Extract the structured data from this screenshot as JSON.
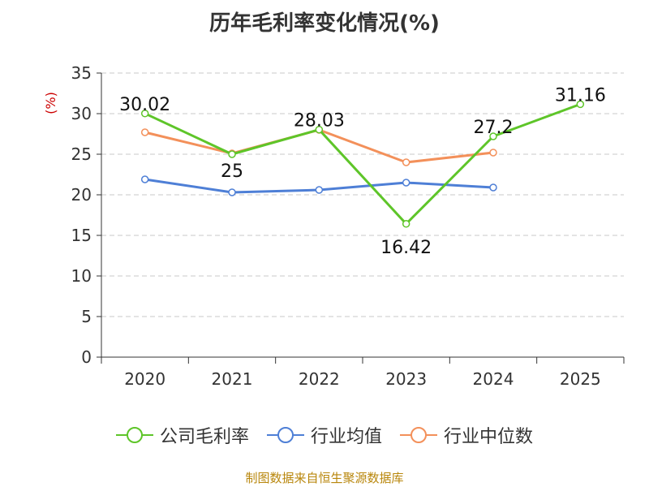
{
  "title": "历年毛利率变化情况(%)",
  "footer": "制图数据来自恒生聚源数据库",
  "chart_data": {
    "type": "line",
    "title": "历年毛利率变化情况(%)",
    "ylabel": "(%)",
    "xlabel": "",
    "categories": [
      "2020",
      "2021",
      "2022",
      "2023",
      "2024",
      "2025"
    ],
    "ylim": [
      0,
      35
    ],
    "yticks": [
      0,
      5,
      10,
      15,
      20,
      25,
      30,
      35
    ],
    "grid": true,
    "legend_position": "bottom",
    "series": [
      {
        "name": "公司毛利率",
        "color": "#5ec529",
        "values": [
          30.02,
          25,
          28.03,
          16.42,
          27.2,
          31.16
        ],
        "labels": [
          "30.02",
          "25",
          "28.03",
          "16.42",
          "27.2",
          "31.16"
        ]
      },
      {
        "name": "行业均值",
        "color": "#4e7fd6",
        "values": [
          21.9,
          20.3,
          20.6,
          21.5,
          20.9,
          null
        ]
      },
      {
        "name": "行业中位数",
        "color": "#f3905a",
        "values": [
          27.7,
          25.1,
          28.0,
          24.0,
          25.2,
          null
        ]
      }
    ]
  }
}
